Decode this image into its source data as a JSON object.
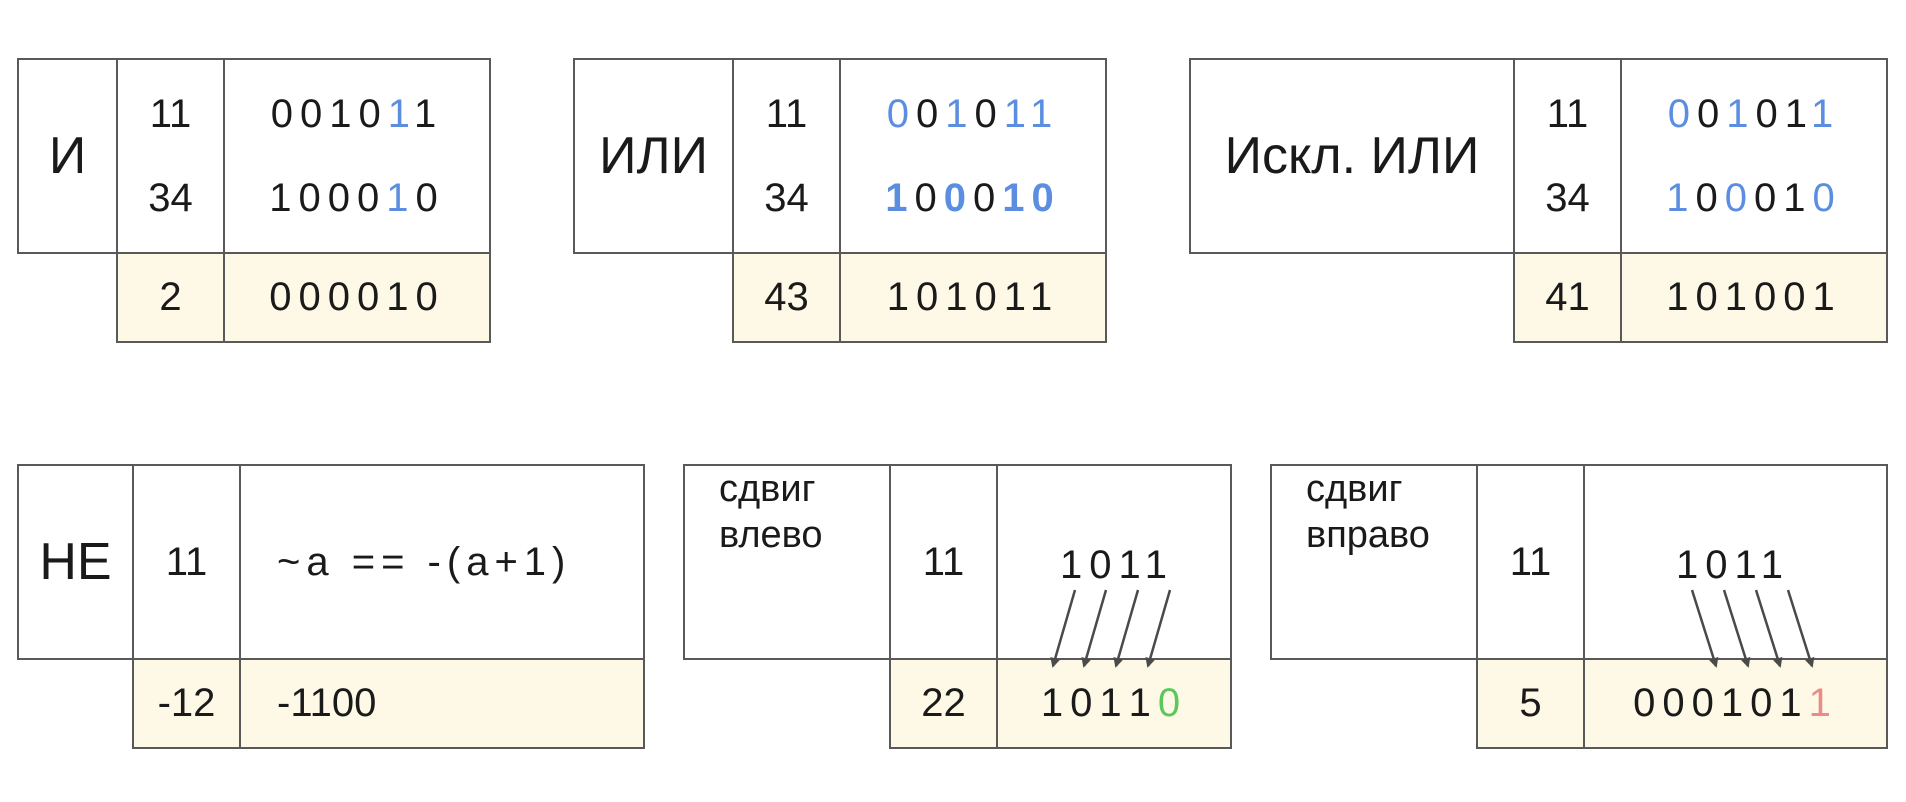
{
  "and": {
    "op": "И",
    "a": "11",
    "b": "34",
    "result": "2",
    "a_bits": [
      [
        "0",
        "b"
      ],
      [
        "0",
        "b"
      ],
      [
        "1",
        "b"
      ],
      [
        "0",
        "b"
      ],
      [
        "1",
        "hl"
      ],
      [
        "1",
        "b"
      ]
    ],
    "b_bits": [
      [
        "1",
        "b"
      ],
      [
        "0",
        "b"
      ],
      [
        "0",
        "b"
      ],
      [
        "0",
        "b"
      ],
      [
        "1",
        "hl"
      ],
      [
        "0",
        "b"
      ]
    ],
    "result_bits": "000010"
  },
  "or": {
    "op": "ИЛИ",
    "a": "11",
    "b": "34",
    "result": "43",
    "a_bits": [
      [
        "0",
        "hl"
      ],
      [
        "0",
        "b"
      ],
      [
        "1",
        "hl"
      ],
      [
        "0",
        "b"
      ],
      [
        "1",
        "hl"
      ],
      [
        "1",
        "hl"
      ]
    ],
    "b_bits": [
      [
        "1",
        "hl bold"
      ],
      [
        "0",
        "b"
      ],
      [
        "0",
        "hl bold"
      ],
      [
        "0",
        "b"
      ],
      [
        "1",
        "hl bold"
      ],
      [
        "0",
        "hl bold"
      ]
    ],
    "result_bits": "101011"
  },
  "xor": {
    "op": "Искл. ИЛИ",
    "a": "11",
    "b": "34",
    "result": "41",
    "a_bits": [
      [
        "0",
        "hl"
      ],
      [
        "0",
        "b"
      ],
      [
        "1",
        "hl"
      ],
      [
        "0",
        "b"
      ],
      [
        "1",
        "b"
      ],
      [
        "1",
        "hl"
      ]
    ],
    "b_bits": [
      [
        "1",
        "hl"
      ],
      [
        "0",
        "b"
      ],
      [
        "0",
        "hl"
      ],
      [
        "0",
        "b"
      ],
      [
        "1",
        "b"
      ],
      [
        "0",
        "hl"
      ]
    ],
    "result_bits": "101001"
  },
  "not": {
    "op": "НЕ",
    "a": "11",
    "result": "-12",
    "formula": "~a == -(a+1)",
    "result_bits": "-1100"
  },
  "shl": {
    "op_line1": "сдвиг",
    "op_line2": "влево",
    "a": "11",
    "result": "22",
    "a_bits": "1011",
    "result_bits": [
      [
        "1",
        "b"
      ],
      [
        "0",
        "b"
      ],
      [
        "1",
        "b"
      ],
      [
        "1",
        "b"
      ],
      [
        "0",
        "green"
      ]
    ]
  },
  "shr": {
    "op_line1": "сдвиг",
    "op_line2": "вправо",
    "a": "11",
    "result": "5",
    "a_bits": "1011",
    "result_bits": [
      [
        "0",
        "b"
      ],
      [
        "0",
        "b"
      ],
      [
        "0",
        "b"
      ],
      [
        "1",
        "b"
      ],
      [
        "0",
        "b"
      ],
      [
        "1",
        "b"
      ],
      [
        "1",
        "red"
      ]
    ]
  },
  "colors": {
    "highlight": "#5b8ee1",
    "appended_zero": "#5cc85c",
    "dropped_bit": "#ec8a8a",
    "result_background": "#fdf9e6",
    "border": "#595959"
  }
}
